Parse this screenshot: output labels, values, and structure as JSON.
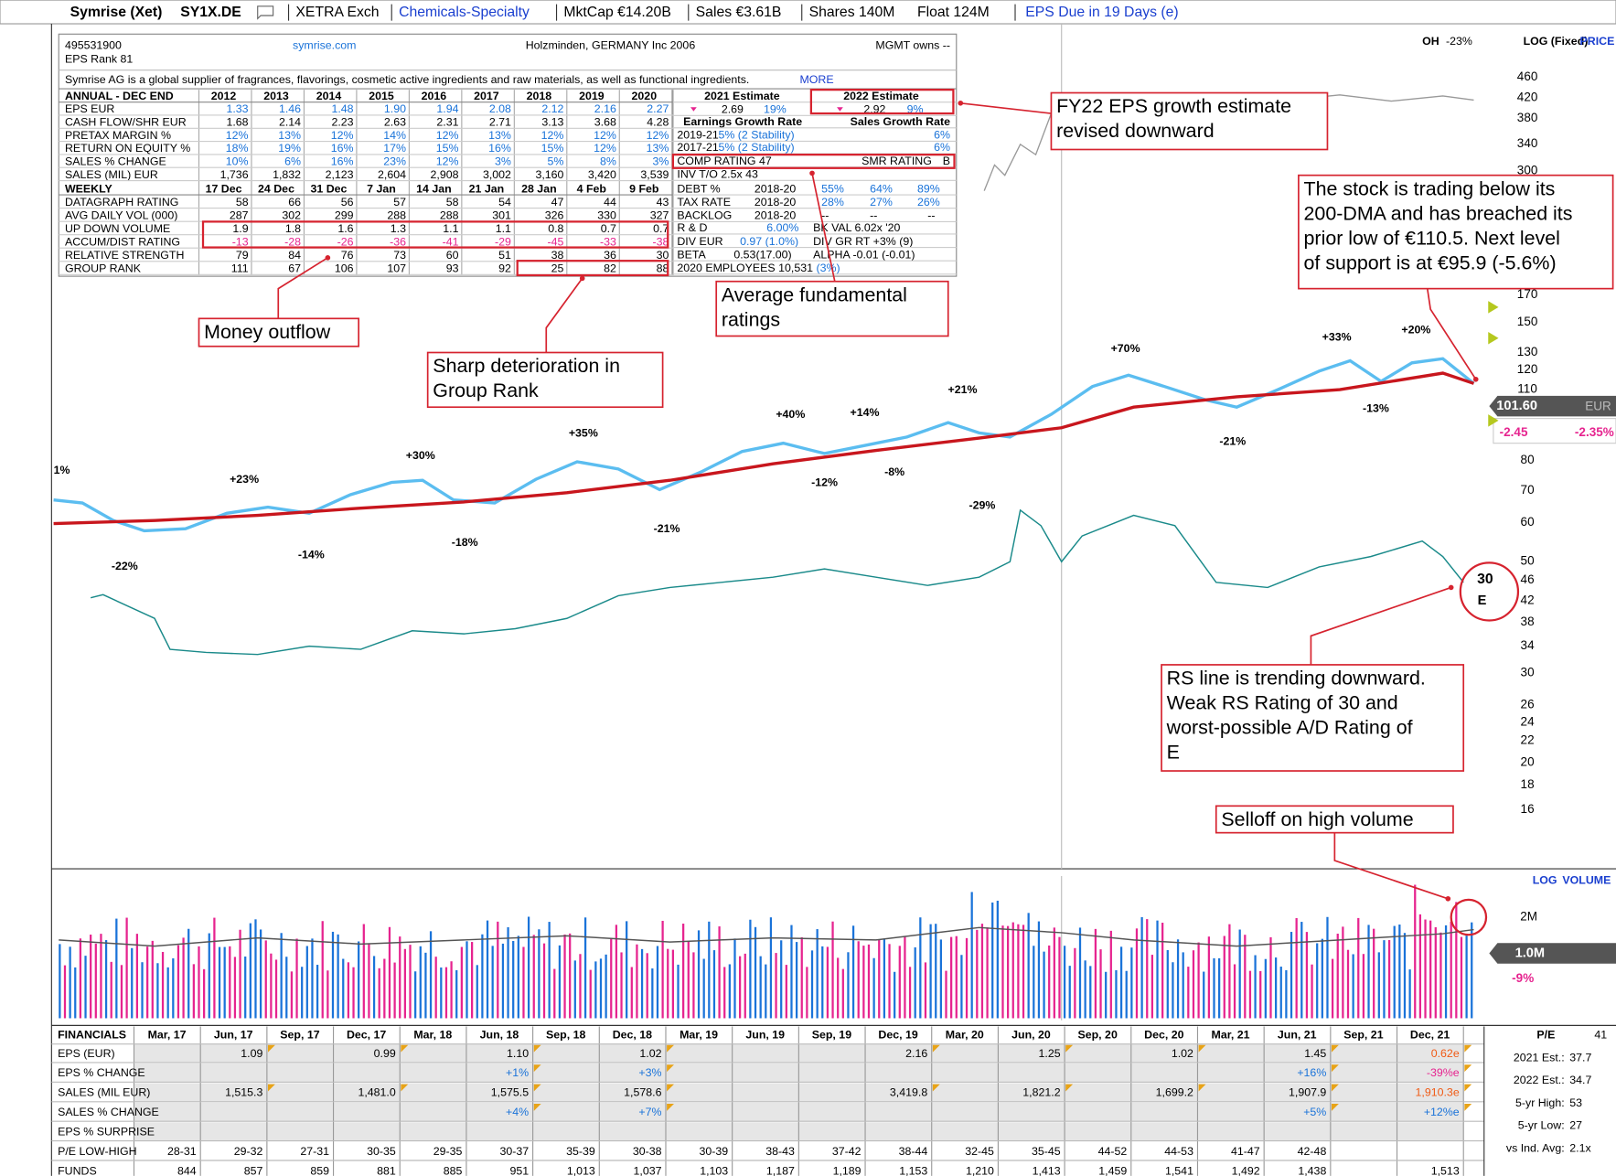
{
  "header": {
    "items": [
      "Symrise (Xet)",
      "SY1X.DE",
      "XETRA Exch",
      "Chemicals-Specialty",
      "MktCap €14.20B",
      "Sales €3.61B",
      "Shares 140M",
      "Float 124M",
      "EPS  Due  in 19 Days (e)"
    ]
  },
  "data_box": {
    "id": "495531900",
    "eps_rank": "EPS Rank 81",
    "website": "symrise.com",
    "location": "Holzminden, GERMANY Inc 2006",
    "mgmt": "MGMT owns --",
    "description": "Symrise AG is a global supplier of fragrances, flavorings, cosmetic active ingredients and raw materials, as well as functional ingredients.",
    "more": "MORE",
    "annual": {
      "columns": [
        "ANNUAL - DEC END",
        "2012",
        "2013",
        "2014",
        "2015",
        "2016",
        "2017",
        "2018",
        "2019",
        "2020"
      ],
      "rows": [
        [
          "EPS EUR",
          "1.33",
          "1.46",
          "1.48",
          "1.90",
          "1.94",
          "2.08",
          "2.12",
          "2.16",
          "2.27"
        ],
        [
          "CASH FLOW/SHR EUR",
          "1.68",
          "2.14",
          "2.23",
          "2.63",
          "2.31",
          "2.71",
          "3.13",
          "3.68",
          "4.28"
        ],
        [
          "PRETAX MARGIN %",
          "12%",
          "13%",
          "12%",
          "14%",
          "12%",
          "13%",
          "12%",
          "12%",
          "12%"
        ],
        [
          "RETURN ON EQUITY %",
          "18%",
          "19%",
          "16%",
          "17%",
          "15%",
          "16%",
          "15%",
          "12%",
          "13%"
        ],
        [
          "SALES % CHANGE",
          "10%",
          "6%",
          "16%",
          "23%",
          "12%",
          "3%",
          "5%",
          "8%",
          "3%"
        ],
        [
          "SALES (MIL) EUR",
          "1,736",
          "1,832",
          "2,123",
          "2,604",
          "2,908",
          "3,002",
          "3,160",
          "3,420",
          "3,539"
        ]
      ]
    },
    "weekly": {
      "columns": [
        "WEEKLY",
        "17 Dec",
        "24 Dec",
        "31 Dec",
        "7 Jan",
        "14 Jan",
        "21 Jan",
        "28 Jan",
        "4 Feb",
        "9 Feb"
      ],
      "rows": [
        [
          "DATAGRAPH RATING",
          "58",
          "66",
          "56",
          "57",
          "58",
          "54",
          "47",
          "44",
          "43"
        ],
        [
          "AVG DAILY VOL (000)",
          "287",
          "302",
          "299",
          "288",
          "288",
          "301",
          "326",
          "330",
          "327"
        ],
        [
          "UP DOWN VOLUME",
          "1.9",
          "1.8",
          "1.6",
          "1.3",
          "1.1",
          "1.1",
          "0.8",
          "0.7",
          "0.7"
        ],
        [
          "ACCUM/DIST RATING",
          "-13",
          "-28",
          "-26",
          "-36",
          "-41",
          "-29",
          "-45",
          "-33",
          "-38"
        ],
        [
          "RELATIVE STRENGTH",
          "79",
          "84",
          "76",
          "73",
          "60",
          "51",
          "38",
          "36",
          "30"
        ],
        [
          "GROUP RANK",
          "111",
          "67",
          "106",
          "107",
          "93",
          "92",
          "25",
          "82",
          "88"
        ]
      ]
    },
    "side_rows": [
      [
        "2021 Estimate",
        "2022 Estimate"
      ],
      [
        "2.69",
        "19%",
        "2.92",
        "9%"
      ],
      [
        "Earnings Growth Rate",
        "Sales Growth Rate"
      ],
      [
        "2019-21",
        "5% (2 Stability)",
        "6%"
      ],
      [
        "2017-21",
        "5% (2 Stability)",
        "6%"
      ],
      [
        "COMP RATING  47",
        "SMR RATING",
        "B"
      ],
      [
        "INV T/O  2.5x 43"
      ],
      [
        "DEBT %",
        "2018-20",
        "55%",
        "64%",
        "89%"
      ],
      [
        "TAX RATE",
        "2018-20",
        "28%",
        "27%",
        "26%"
      ],
      [
        "BACKLOG",
        "2018-20",
        "--",
        "--",
        "--"
      ],
      [
        "R & D",
        "6.00%",
        "BK VAL  6.02x '20"
      ],
      [
        "DIV EUR",
        "0.97 (1.0%)",
        "DIV GR RT +3% (9)"
      ],
      [
        "BETA",
        "0.53(17.00)",
        "ALPHA -0.01 (-0.01)"
      ],
      [
        "2020 EMPLOYEES  10,531",
        "(3%)"
      ]
    ]
  },
  "price_panel": {
    "oh": "OH",
    "oh_value": "-23%",
    "scale": "LOG (Fixed)",
    "label": "PRICE",
    "axis_labels": [
      "460",
      "420",
      "380",
      "340",
      "300",
      "170",
      "150",
      "130",
      "120",
      "110",
      "80",
      "70",
      "60",
      "50",
      "46",
      "42",
      "38",
      "34",
      "30",
      "26",
      "24",
      "22",
      "20",
      "18",
      "16"
    ],
    "last_price": "101.60",
    "currency": "EUR",
    "change": "-2.45",
    "change_pct": "-2.35%",
    "rs_rating": "30",
    "ad_rating": "E",
    "move_labels": [
      "1%",
      "+23%",
      "-22%",
      "+30%",
      "-14%",
      "-18%",
      "+35%",
      "-21%",
      "+40%",
      "-12%",
      "+14%",
      "-8%",
      "+21%",
      "-29%",
      "+70%",
      "-21%",
      "+33%",
      "+20%",
      "-13%"
    ]
  },
  "volume_panel": {
    "scale": "LOG",
    "label": "VOLUME",
    "axis_label": "2M",
    "last_volume": "1.0M",
    "change_pct": "-9%"
  },
  "annotations": [
    {
      "lines": [
        "FY22 EPS growth estimate",
        "revised downward"
      ]
    },
    {
      "lines": [
        "The stock is trading below its",
        "200-DMA and has breached its",
        "prior low of €110.5. Next level",
        "of support is at €95.9 (-5.6%)"
      ]
    },
    {
      "lines": [
        "Money outflow"
      ]
    },
    {
      "lines": [
        "Average fundamental",
        "ratings"
      ]
    },
    {
      "lines": [
        "Sharp deterioration in",
        "Group Rank"
      ]
    },
    {
      "lines": [
        "RS line is trending downward.",
        "Weak RS Rating of 30 and",
        "worst-possible A/D Rating of",
        "E"
      ]
    },
    {
      "lines": [
        "Selloff on high volume"
      ]
    }
  ],
  "financials": {
    "title": "FINANCIALS",
    "columns": [
      "Mar, 17",
      "Jun, 17",
      "Sep, 17",
      "Dec, 17",
      "Mar, 18",
      "Jun, 18",
      "Sep, 18",
      "Dec, 18",
      "Mar, 19",
      "Jun, 19",
      "Sep, 19",
      "Dec, 19",
      "Mar, 20",
      "Jun, 20",
      "Sep, 20",
      "Dec, 20",
      "Mar, 21",
      "Jun, 21",
      "Sep, 21",
      "Dec, 21"
    ],
    "rows": [
      {
        "label": "EPS (EUR)",
        "cells": [
          null,
          "1.09",
          null,
          "0.99",
          null,
          "1.10",
          null,
          "1.02",
          null,
          null,
          null,
          "2.16",
          null,
          "1.25",
          null,
          "1.02",
          null,
          "1.45",
          null,
          "0.62e"
        ]
      },
      {
        "label": "EPS % CHANGE",
        "cells": [
          null,
          null,
          null,
          null,
          null,
          "+1%",
          null,
          "+3%",
          null,
          null,
          null,
          null,
          null,
          null,
          null,
          null,
          null,
          "+16%",
          null,
          "-39%e"
        ]
      },
      {
        "label": "SALES (MIL  EUR)",
        "cells": [
          null,
          "1,515.3",
          null,
          "1,481.0",
          null,
          "1,575.5",
          null,
          "1,578.6",
          null,
          null,
          null,
          "3,419.8",
          null,
          "1,821.2",
          null,
          "1,699.2",
          null,
          "1,907.9",
          null,
          "1,910.3e"
        ]
      },
      {
        "label": "SALES % CHANGE",
        "cells": [
          null,
          null,
          null,
          null,
          null,
          "+4%",
          null,
          "+7%",
          null,
          null,
          null,
          null,
          null,
          null,
          null,
          null,
          null,
          "+5%",
          null,
          "+12%e"
        ]
      },
      {
        "label": "EPS % SURPRISE",
        "cells": [
          null,
          null,
          null,
          null,
          null,
          null,
          null,
          null,
          null,
          null,
          null,
          null,
          null,
          null,
          null,
          null,
          null,
          null,
          null,
          null
        ]
      },
      {
        "label": "P/E LOW-HIGH",
        "cells": [
          "28-31",
          "29-32",
          "27-31",
          "30-35",
          "29-35",
          "30-37",
          "35-39",
          "30-38",
          "30-39",
          "38-43",
          "37-42",
          "38-44",
          "32-45",
          "35-45",
          "44-52",
          "44-53",
          "41-47",
          "42-48",
          null,
          null
        ]
      },
      {
        "label": "FUNDS",
        "cells": [
          "844",
          "857",
          "859",
          "881",
          "885",
          "951",
          "1,013",
          "1,037",
          "1,103",
          "1,187",
          "1,189",
          "1,153",
          "1,210",
          "1,413",
          "1,459",
          "1,541",
          "1,492",
          "1,438",
          null,
          "1,513"
        ]
      }
    ]
  },
  "pe_panel": {
    "rows": [
      [
        "P/E",
        "41"
      ],
      [
        "2021 Est.:",
        "37.7"
      ],
      [
        "2022 Est.:",
        "34.7"
      ],
      [
        "5-yr High:",
        "53"
      ],
      [
        "5-yr Low:",
        "27"
      ],
      [
        "vs Ind. Avg:",
        "2.1x"
      ]
    ]
  }
}
